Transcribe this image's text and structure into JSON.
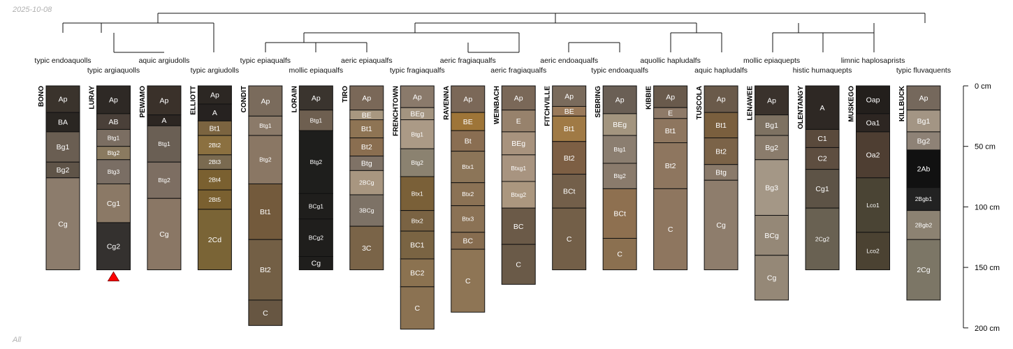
{
  "date": "2025-10-08",
  "set_label": "All",
  "depth_axis": {
    "unit": "cm",
    "ticks": [
      0,
      50,
      100,
      150,
      200
    ]
  },
  "profiles": [
    {
      "name": "BONO",
      "tax": "typic endoaquolls",
      "h": [
        {
          "n": "Ap",
          "t": 0,
          "b": 22,
          "c": "#3a332c"
        },
        {
          "n": "BA",
          "t": 22,
          "b": 38,
          "c": "#2a2622"
        },
        {
          "n": "Bg1",
          "t": 38,
          "b": 63,
          "c": "#6a5e52"
        },
        {
          "n": "Bg2",
          "t": 63,
          "b": 76,
          "c": "#5f5448"
        },
        {
          "n": "Cg",
          "t": 76,
          "b": 152,
          "c": "#8c7c6c"
        }
      ]
    },
    {
      "name": "LURAY",
      "tax": "typic argiaquolls",
      "marker": true,
      "h": [
        {
          "n": "Ap",
          "t": 0,
          "b": 23,
          "c": "#2e2925"
        },
        {
          "n": "AB",
          "t": 23,
          "b": 36,
          "c": "#4a4039"
        },
        {
          "n": "Btg1",
          "t": 36,
          "b": 50,
          "c": "#7b6e62"
        },
        {
          "n": "Btg2",
          "t": 50,
          "b": 61,
          "c": "#8a7a60"
        },
        {
          "n": "Btg3",
          "t": 61,
          "b": 81,
          "c": "#7a6e64"
        },
        {
          "n": "Cg1",
          "t": 81,
          "b": 113,
          "c": "#8b7966"
        },
        {
          "n": "Cg2",
          "t": 113,
          "b": 152,
          "c": "#34312f"
        }
      ]
    },
    {
      "name": "PEWAMO",
      "tax": "aquic argiudolls",
      "h": [
        {
          "n": "Ap",
          "t": 0,
          "b": 24,
          "c": "#3a312a"
        },
        {
          "n": "A",
          "t": 24,
          "b": 33,
          "c": "#2c2622"
        },
        {
          "n": "Btg1",
          "t": 33,
          "b": 63,
          "c": "#6a5f54"
        },
        {
          "n": "Btg2",
          "t": 63,
          "b": 93,
          "c": "#7d6e62"
        },
        {
          "n": "Cg",
          "t": 93,
          "b": 152,
          "c": "#8a7765"
        }
      ]
    },
    {
      "name": "ELLIOTT",
      "tax": "typic argiudolls",
      "h": [
        {
          "n": "Ap",
          "t": 0,
          "b": 15,
          "c": "#2c2723"
        },
        {
          "n": "A",
          "t": 15,
          "b": 29,
          "c": "#262220"
        },
        {
          "n": "Bt1",
          "t": 29,
          "b": 41,
          "c": "#7b6440"
        },
        {
          "n": "2Bt2",
          "t": 41,
          "b": 57,
          "c": "#8b7040"
        },
        {
          "n": "2Bt3",
          "t": 57,
          "b": 69,
          "c": "#7a6a50"
        },
        {
          "n": "2Bt4",
          "t": 69,
          "b": 86,
          "c": "#7a6030"
        },
        {
          "n": "2Bt5",
          "t": 86,
          "b": 102,
          "c": "#7a6030"
        },
        {
          "n": "2Cd",
          "t": 102,
          "b": 152,
          "c": "#7a6436"
        }
      ]
    },
    {
      "name": "CONDIT",
      "tax": "typic epiaqualfs",
      "h": [
        {
          "n": "Ap",
          "t": 0,
          "b": 25,
          "c": "#7a6b5c"
        },
        {
          "n": "Btg1",
          "t": 25,
          "b": 41,
          "c": "#8b7a69"
        },
        {
          "n": "Btg2",
          "t": 41,
          "b": 81,
          "c": "#8a7764"
        },
        {
          "n": "Bt1",
          "t": 81,
          "b": 127,
          "c": "#735a3c"
        },
        {
          "n": "Bt2",
          "t": 127,
          "b": 177,
          "c": "#735f45"
        },
        {
          "n": "C",
          "t": 177,
          "b": 198,
          "c": "#675642"
        }
      ]
    },
    {
      "name": "LORAIN",
      "tax": "mollic epiaqualfs",
      "h": [
        {
          "n": "Ap",
          "t": 0,
          "b": 20,
          "c": "#3a342e"
        },
        {
          "n": "Btg1",
          "t": 20,
          "b": 37,
          "c": "#6e5f50"
        },
        {
          "n": "Btg2",
          "t": 37,
          "b": 89,
          "c": "#1e1e1c"
        },
        {
          "n": "BCg1",
          "t": 89,
          "b": 110,
          "c": "#1f1e1c"
        },
        {
          "n": "BCg2",
          "t": 110,
          "b": 141,
          "c": "#1f1e1c"
        },
        {
          "n": "Cg",
          "t": 141,
          "b": 152,
          "c": "#1f1e1c"
        }
      ]
    },
    {
      "name": "TIRO",
      "tax": "aeric epiaqualfs",
      "h": [
        {
          "n": "Ap",
          "t": 0,
          "b": 20,
          "c": "#7a6858"
        },
        {
          "n": "BE",
          "t": 20,
          "b": 28,
          "c": "#a89880"
        },
        {
          "n": "Bt1",
          "t": 28,
          "b": 43,
          "c": "#8e7454"
        },
        {
          "n": "Bt2",
          "t": 43,
          "b": 58,
          "c": "#8a6e50"
        },
        {
          "n": "Btg",
          "t": 58,
          "b": 70,
          "c": "#7f7266"
        },
        {
          "n": "2BCg",
          "t": 70,
          "b": 90,
          "c": "#a89680"
        },
        {
          "n": "3BCg",
          "t": 90,
          "b": 116,
          "c": "#7d7266"
        },
        {
          "n": "3C",
          "t": 116,
          "b": 152,
          "c": "#7a6448"
        }
      ]
    },
    {
      "name": "FRENCHTOWN",
      "tax": "typic fragiaqualfs",
      "h": [
        {
          "n": "Ap",
          "t": 0,
          "b": 18,
          "c": "#8a7a6b"
        },
        {
          "n": "BEg",
          "t": 18,
          "b": 28,
          "c": "#a39480"
        },
        {
          "n": "Btg1",
          "t": 28,
          "b": 52,
          "c": "#ab9a86"
        },
        {
          "n": "Btg2",
          "t": 52,
          "b": 75,
          "c": "#8b8270"
        },
        {
          "n": "Btx1",
          "t": 75,
          "b": 103,
          "c": "#7a6038"
        },
        {
          "n": "Btx2",
          "t": 103,
          "b": 120,
          "c": "#7a6343"
        },
        {
          "n": "BC1",
          "t": 120,
          "b": 143,
          "c": "#7a6443"
        },
        {
          "n": "BC2",
          "t": 143,
          "b": 166,
          "c": "#8b7250"
        },
        {
          "n": "C",
          "t": 166,
          "b": 201,
          "c": "#8b7252"
        }
      ]
    },
    {
      "name": "RAVENNA",
      "tax": "aeric fragiaqualfs",
      "h": [
        {
          "n": "Ap",
          "t": 0,
          "b": 22,
          "c": "#7b6858"
        },
        {
          "n": "BE",
          "t": 22,
          "b": 37,
          "c": "#9e7538"
        },
        {
          "n": "Bt",
          "t": 37,
          "b": 54,
          "c": "#8a6e52"
        },
        {
          "n": "Btx1",
          "t": 54,
          "b": 80,
          "c": "#8c7558"
        },
        {
          "n": "Btx2",
          "t": 80,
          "b": 99,
          "c": "#8b7255"
        },
        {
          "n": "Btx3",
          "t": 99,
          "b": 121,
          "c": "#8b7255"
        },
        {
          "n": "BC",
          "t": 121,
          "b": 135,
          "c": "#876d50"
        },
        {
          "n": "C",
          "t": 135,
          "b": 187,
          "c": "#8e7555"
        }
      ]
    },
    {
      "name": "WEINBACH",
      "tax": "aeric fragiaqualfs",
      "h": [
        {
          "n": "Ap",
          "t": 0,
          "b": 20,
          "c": "#7a6858"
        },
        {
          "n": "E",
          "t": 20,
          "b": 38,
          "c": "#97826c"
        },
        {
          "n": "BEg",
          "t": 38,
          "b": 57,
          "c": "#a8937e"
        },
        {
          "n": "Btxg1",
          "t": 57,
          "b": 79,
          "c": "#a89480"
        },
        {
          "n": "Btxg2",
          "t": 79,
          "b": 101,
          "c": "#ab977f"
        },
        {
          "n": "BC",
          "t": 101,
          "b": 131,
          "c": "#6b5a48"
        },
        {
          "n": "C",
          "t": 131,
          "b": 164,
          "c": "#6a5a48"
        }
      ]
    },
    {
      "name": "FITCHVILLE",
      "tax": "aeric endoaqualfs",
      "h": [
        {
          "n": "Ap",
          "t": 0,
          "b": 17,
          "c": "#7a6b5c"
        },
        {
          "n": "BE",
          "t": 17,
          "b": 25,
          "c": "#9a7a5a"
        },
        {
          "n": "Bt1",
          "t": 25,
          "b": 46,
          "c": "#a07a45"
        },
        {
          "n": "Bt2",
          "t": 46,
          "b": 73,
          "c": "#7d5f44"
        },
        {
          "n": "BCt",
          "t": 73,
          "b": 101,
          "c": "#735f4a"
        },
        {
          "n": "C",
          "t": 101,
          "b": 152,
          "c": "#735f48"
        }
      ]
    },
    {
      "name": "SEBRING",
      "tax": "typic endoaqualfs",
      "h": [
        {
          "n": "Ap",
          "t": 0,
          "b": 23,
          "c": "#6a5f55"
        },
        {
          "n": "BEg",
          "t": 23,
          "b": 41,
          "c": "#a3957f"
        },
        {
          "n": "Btg1",
          "t": 41,
          "b": 64,
          "c": "#8b7e70"
        },
        {
          "n": "Btg2",
          "t": 64,
          "b": 85,
          "c": "#8a7b6c"
        },
        {
          "n": "BCt",
          "t": 85,
          "b": 126,
          "c": "#8e7050"
        },
        {
          "n": "C",
          "t": 126,
          "b": 152,
          "c": "#8b7050"
        }
      ]
    },
    {
      "name": "KIBBIE",
      "tax": "aquollic hapludalfs",
      "h": [
        {
          "n": "Ap",
          "t": 0,
          "b": 18,
          "c": "#695a4c"
        },
        {
          "n": "E",
          "t": 18,
          "b": 27,
          "c": "#8e7a68"
        },
        {
          "n": "Bt1",
          "t": 27,
          "b": 47,
          "c": "#8e765f"
        },
        {
          "n": "Bt2",
          "t": 47,
          "b": 85,
          "c": "#8e765f"
        },
        {
          "n": "C",
          "t": 85,
          "b": 152,
          "c": "#8e765f"
        }
      ]
    },
    {
      "name": "TUSCOLA",
      "tax": "aquic hapludalfs",
      "h": [
        {
          "n": "Ap",
          "t": 0,
          "b": 22,
          "c": "#6a5a4a"
        },
        {
          "n": "Bt1",
          "t": 22,
          "b": 43,
          "c": "#7a5f3e"
        },
        {
          "n": "Bt2",
          "t": 43,
          "b": 65,
          "c": "#7b6348"
        },
        {
          "n": "Btg",
          "t": 65,
          "b": 78,
          "c": "#8a7a6a"
        },
        {
          "n": "Cg",
          "t": 78,
          "b": 152,
          "c": "#8e7d6c"
        }
      ]
    },
    {
      "name": "LENAWEE",
      "tax": "mollic epiaquepts",
      "h": [
        {
          "n": "Ap",
          "t": 0,
          "b": 24,
          "c": "#3a322c"
        },
        {
          "n": "Bg1",
          "t": 24,
          "b": 41,
          "c": "#7e7262"
        },
        {
          "n": "Bg2",
          "t": 41,
          "b": 61,
          "c": "#8a7c6c"
        },
        {
          "n": "Bg3",
          "t": 61,
          "b": 107,
          "c": "#a49786"
        },
        {
          "n": "BCg",
          "t": 107,
          "b": 140,
          "c": "#958877"
        },
        {
          "n": "Cg",
          "t": 140,
          "b": 177,
          "c": "#958877"
        }
      ]
    },
    {
      "name": "OLENTANGY",
      "tax": "histic humaquepts",
      "h": [
        {
          "n": "A",
          "t": 0,
          "b": 36,
          "c": "#2e2824"
        },
        {
          "n": "C1",
          "t": 36,
          "b": 51,
          "c": "#5a4a3c"
        },
        {
          "n": "C2",
          "t": 51,
          "b": 69,
          "c": "#5e4e40"
        },
        {
          "n": "Cg1",
          "t": 69,
          "b": 101,
          "c": "#5d5346"
        },
        {
          "n": "2Cg2",
          "t": 101,
          "b": 152,
          "c": "#696152"
        }
      ]
    },
    {
      "name": "MUSKEGO",
      "tax": "limnic haplosaprists",
      "h": [
        {
          "n": "Oap",
          "t": 0,
          "b": 23,
          "c": "#231f1c"
        },
        {
          "n": "Oa1",
          "t": 23,
          "b": 38,
          "c": "#2d2622"
        },
        {
          "n": "Oa2",
          "t": 38,
          "b": 76,
          "c": "#4e3e32"
        },
        {
          "n": "Lco1",
          "t": 76,
          "b": 121,
          "c": "#4a4434"
        },
        {
          "n": "Lco2",
          "t": 121,
          "b": 152,
          "c": "#4b4232"
        }
      ]
    },
    {
      "name": "KILLBUCK",
      "tax": "typic fluvaquents",
      "h": [
        {
          "n": "Ap",
          "t": 0,
          "b": 20,
          "c": "#75685c"
        },
        {
          "n": "Bg1",
          "t": 20,
          "b": 38,
          "c": "#a39584"
        },
        {
          "n": "Bg2",
          "t": 38,
          "b": 53,
          "c": "#8e8276"
        },
        {
          "n": "2Ab",
          "t": 53,
          "b": 84,
          "c": "#111111"
        },
        {
          "n": "2Bgb1",
          "t": 84,
          "b": 103,
          "c": "#222222"
        },
        {
          "n": "2Bgb2",
          "t": 103,
          "b": 127,
          "c": "#8c8272"
        },
        {
          "n": "2Cg",
          "t": 127,
          "b": 177,
          "c": "#7c7666"
        }
      ]
    }
  ]
}
